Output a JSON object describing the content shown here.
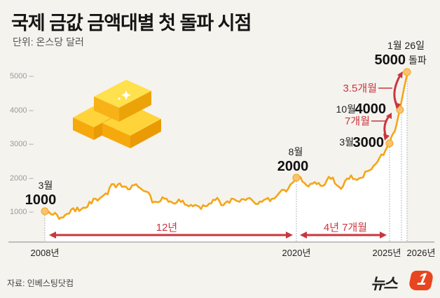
{
  "title": "국제 금값 금액대별 첫 돌파 시점",
  "unit": "단위: 온스당 달러",
  "source": "자료: 인베스팅닷컴",
  "logo": {
    "text": "뉴스",
    "mark": "1"
  },
  "colors": {
    "line": "#f5a516",
    "arrow": "#c9363e",
    "background": "#f5f3ee",
    "fill": "#ffffff",
    "logo": "#e8461e"
  },
  "y_ticks": [
    "5000 –",
    "4000 –",
    "3000 –",
    "2000 –",
    "1000 –"
  ],
  "x_labels": {
    "x2008": "2008년",
    "x2020": "2020년",
    "x2025": "2025년",
    "x2026": "2026년"
  },
  "annotations": {
    "a1000": {
      "month": "3월",
      "value": "1000"
    },
    "a2000": {
      "month": "8월",
      "value": "2000"
    },
    "a3000": {
      "month": "3월",
      "value": "3000"
    },
    "a4000": {
      "month": "10월",
      "value": "4000"
    },
    "a5000": {
      "month": "1월 26일",
      "value": "5000",
      "suffix": "돌파"
    }
  },
  "intervals": {
    "i1": "12년",
    "i2": "4년 7개월",
    "i3": "7개월",
    "i4": "3.5개월"
  },
  "chart_data": {
    "type": "line",
    "title": "국제 금값 금액대별 첫 돌파 시점",
    "ylabel": "온스당 달러",
    "ylim": [
      0,
      5200
    ],
    "y_ticks": [
      1000,
      2000,
      3000,
      4000,
      5000
    ],
    "x_ticks": [
      "2008년",
      "2020년",
      "2025년",
      "2026년"
    ],
    "grid": false,
    "x": [
      2008.2,
      2008.6,
      2008.9,
      2009.3,
      2009.7,
      2010.1,
      2010.5,
      2010.9,
      2011.3,
      2011.6,
      2011.7,
      2012.0,
      2012.4,
      2012.8,
      2013.2,
      2013.5,
      2013.9,
      2014.3,
      2014.7,
      2015.1,
      2015.5,
      2015.9,
      2016.3,
      2016.6,
      2016.9,
      2017.3,
      2017.7,
      2018.1,
      2018.6,
      2018.9,
      2019.3,
      2019.7,
      2020.1,
      2020.6,
      2020.9,
      2021.2,
      2021.6,
      2022.0,
      2022.3,
      2022.8,
      2023.2,
      2023.6,
      2023.9,
      2024.2,
      2024.6,
      2024.9,
      2025.2,
      2025.5,
      2025.8,
      2026.07
    ],
    "values": [
      1000,
      900,
      780,
      930,
      1000,
      1110,
      1230,
      1380,
      1500,
      1800,
      1700,
      1720,
      1650,
      1720,
      1580,
      1260,
      1300,
      1280,
      1260,
      1200,
      1150,
      1070,
      1230,
      1330,
      1180,
      1250,
      1300,
      1330,
      1220,
      1280,
      1300,
      1500,
      1580,
      2000,
      1870,
      1730,
      1800,
      1780,
      1950,
      1660,
      1950,
      1920,
      2000,
      2200,
      2450,
      2650,
      3000,
      3350,
      4000,
      5000
    ],
    "milestones": [
      {
        "label": "3월 1000",
        "x": 2008.2,
        "y": 1000
      },
      {
        "label": "8월 2000",
        "x": 2020.6,
        "y": 2000
      },
      {
        "label": "3월 3000",
        "x": 2025.2,
        "y": 3000
      },
      {
        "label": "10월 4000",
        "x": 2025.8,
        "y": 4000
      },
      {
        "label": "1월 26일 5000 돌파",
        "x": 2026.07,
        "y": 5000
      }
    ],
    "intervals": [
      {
        "label": "12년",
        "from": "2008 (1000)",
        "to": "2020 (2000)"
      },
      {
        "label": "4년 7개월",
        "from": "2020 (2000)",
        "to": "2025 (3000)"
      },
      {
        "label": "7개월",
        "from": "3000",
        "to": "4000"
      },
      {
        "label": "3.5개월",
        "from": "4000",
        "to": "5000"
      }
    ]
  }
}
